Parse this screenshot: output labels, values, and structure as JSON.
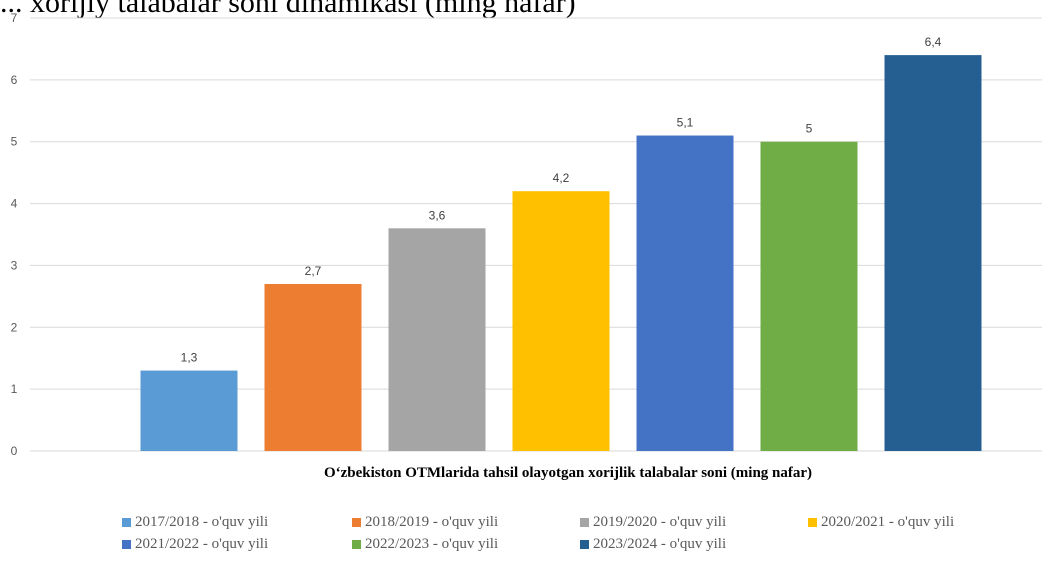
{
  "top_caption": "... xorijiy talabalar soni dinamikasi (ming nafar)",
  "chart_data": {
    "type": "bar",
    "title": "",
    "xlabel": "O‘zbekiston OTMlarida tahsil olayotgan xorijlik talabalar soni (ming nafar)",
    "ylabel": "",
    "ylim": [
      0,
      7
    ],
    "yticks": [
      "0",
      "1",
      "2",
      "3",
      "4",
      "5",
      "6",
      "7"
    ],
    "grid": true,
    "legend_position": "bottom",
    "series": [
      {
        "name": "2017/2018 - o'quv yili",
        "value": 1.3,
        "label": "1,3",
        "color": "#5B9BD5"
      },
      {
        "name": "2018/2019 - o'quv yili",
        "value": 2.7,
        "label": "2,7",
        "color": "#ED7D31"
      },
      {
        "name": "2019/2020 - o'quv yili",
        "value": 3.6,
        "label": "3,6",
        "color": "#A5A5A5"
      },
      {
        "name": "2020/2021 - o'quv yili",
        "value": 4.2,
        "label": "4,2",
        "color": "#FFC000"
      },
      {
        "name": "2021/2022 - o'quv yili",
        "value": 5.1,
        "label": "5,1",
        "color": "#4472C4"
      },
      {
        "name": "2022/2023 - o'quv yili",
        "value": 5.0,
        "label": "5",
        "color": "#70AD47"
      },
      {
        "name": "2023/2024 - o'quv yili",
        "value": 6.4,
        "label": "6,4",
        "color": "#255E91"
      }
    ]
  }
}
